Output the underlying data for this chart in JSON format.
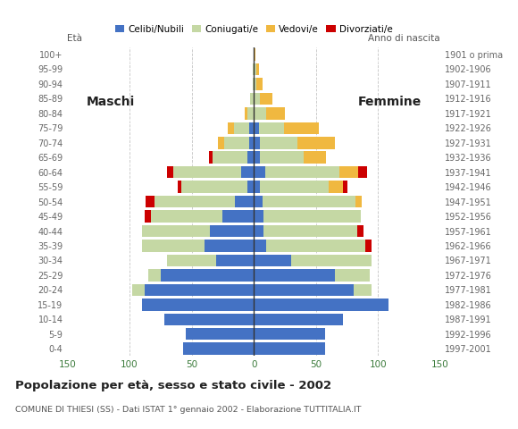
{
  "age_groups": [
    "0-4",
    "5-9",
    "10-14",
    "15-19",
    "20-24",
    "25-29",
    "30-34",
    "35-39",
    "40-44",
    "45-49",
    "50-54",
    "55-59",
    "60-64",
    "65-69",
    "70-74",
    "75-79",
    "80-84",
    "85-89",
    "90-94",
    "95-99",
    "100+"
  ],
  "birth_years": [
    "1997-2001",
    "1992-1996",
    "1987-1991",
    "1982-1986",
    "1977-1981",
    "1972-1976",
    "1967-1971",
    "1962-1966",
    "1957-1961",
    "1952-1956",
    "1947-1951",
    "1942-1946",
    "1937-1941",
    "1932-1936",
    "1927-1931",
    "1922-1926",
    "1917-1921",
    "1912-1916",
    "1907-1911",
    "1902-1906",
    "1901 o prima"
  ],
  "males": {
    "celibi": [
      57,
      55,
      72,
      90,
      88,
      75,
      30,
      40,
      35,
      25,
      15,
      5,
      10,
      5,
      4,
      4,
      0,
      0,
      0,
      0,
      0
    ],
    "coniugati": [
      0,
      0,
      0,
      0,
      10,
      10,
      40,
      50,
      55,
      58,
      65,
      53,
      55,
      28,
      20,
      12,
      5,
      3,
      1,
      1,
      0
    ],
    "vedovi": [
      0,
      0,
      0,
      0,
      0,
      0,
      0,
      0,
      0,
      0,
      0,
      0,
      0,
      0,
      5,
      5,
      2,
      0,
      0,
      0,
      0
    ],
    "divorziati": [
      0,
      0,
      0,
      0,
      0,
      0,
      0,
      0,
      0,
      5,
      7,
      3,
      5,
      3,
      0,
      0,
      0,
      0,
      0,
      0,
      0
    ]
  },
  "females": {
    "nubili": [
      57,
      57,
      72,
      108,
      80,
      65,
      30,
      10,
      8,
      8,
      7,
      5,
      9,
      5,
      5,
      4,
      0,
      0,
      0,
      0,
      0
    ],
    "coniugate": [
      0,
      0,
      0,
      0,
      15,
      28,
      65,
      80,
      75,
      78,
      75,
      55,
      60,
      35,
      30,
      20,
      10,
      5,
      2,
      2,
      0
    ],
    "vedove": [
      0,
      0,
      0,
      0,
      0,
      0,
      0,
      0,
      0,
      0,
      5,
      12,
      15,
      18,
      30,
      28,
      15,
      10,
      5,
      2,
      1
    ],
    "divorziate": [
      0,
      0,
      0,
      0,
      0,
      0,
      0,
      5,
      5,
      0,
      0,
      3,
      7,
      0,
      0,
      0,
      0,
      0,
      0,
      0,
      0
    ]
  },
  "colors": {
    "celibi": "#4472c4",
    "coniugati": "#c5d8a4",
    "vedovi": "#f0b840",
    "divorziati": "#cc0000"
  },
  "xlim": 150,
  "xlabel_color": "#3a7a3a",
  "title": "Popolazione per età, sesso e stato civile - 2002",
  "subtitle": "COMUNE DI THIESI (SS) - Dati ISTAT 1° gennaio 2002 - Elaborazione TUTTITALIA.IT",
  "legend_labels": [
    "Celibi/Nubili",
    "Coniugati/e",
    "Vedovi/e",
    "Divorziati/e"
  ],
  "bg_color": "#ffffff",
  "grid_color": "#aaaaaa"
}
